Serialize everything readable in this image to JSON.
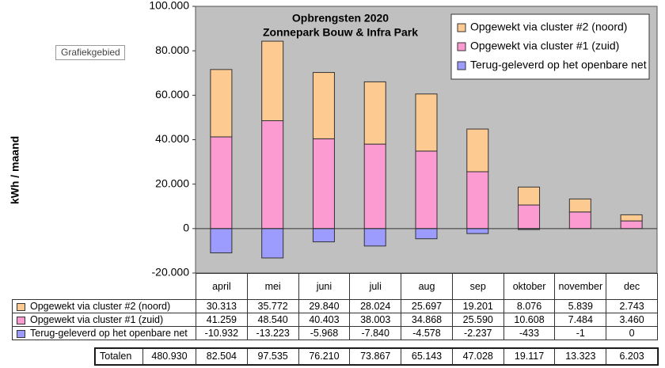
{
  "chart_data": {
    "type": "bar",
    "title": [
      "Opbrengsten 2020",
      "Zonnepark Bouw & Infra Park"
    ],
    "ylabel": "kWh / maand",
    "tooltip": "Grafiekgebied",
    "categories": [
      "april",
      "mei",
      "juni",
      "juli",
      "aug",
      "sep",
      "oktober",
      "november",
      "dec"
    ],
    "stacked": true,
    "series": [
      {
        "name": "Opgewekt via cluster #2 (noord)",
        "color": "#fdca92",
        "values": [
          30313,
          35772,
          29840,
          28024,
          25697,
          19201,
          8076,
          5839,
          2743
        ],
        "value_labels": [
          "30.313",
          "35.772",
          "29.840",
          "28.024",
          "25.697",
          "19.201",
          "8.076",
          "5.839",
          "2.743"
        ]
      },
      {
        "name": "Opgewekt via cluster #1 (zuid)",
        "color": "#fb9bd2",
        "values": [
          41259,
          48540,
          40403,
          38003,
          34868,
          25590,
          10608,
          7484,
          3460
        ],
        "value_labels": [
          "41.259",
          "48.540",
          "40.403",
          "38.003",
          "34.868",
          "25.590",
          "10.608",
          "7.484",
          "3.460"
        ]
      },
      {
        "name": "Terug-geleverd op het openbare net",
        "color": "#9c9cff",
        "values": [
          -10932,
          -13223,
          -5968,
          -7840,
          -4578,
          -2237,
          -433,
          -1,
          0
        ],
        "value_labels": [
          "-10.932",
          "-13.223",
          "-5.968",
          "-7.840",
          "-4.578",
          "-2.237",
          "-433",
          "-1",
          "0"
        ]
      }
    ],
    "stack_order": [
      1,
      0,
      2
    ],
    "ylim": [
      -20000,
      100000
    ],
    "yticks": [
      {
        "value": -20000,
        "label": "-20.000"
      },
      0,
      {
        "value": 20000,
        "label": "20.000"
      },
      {
        "value": 40000,
        "label": "40.000"
      },
      {
        "value": 60000,
        "label": "60.000"
      },
      {
        "value": 80000,
        "label": "80.000"
      },
      {
        "value": 100000,
        "label": "100.000"
      }
    ],
    "totals": {
      "label": "Totalen",
      "grand": "480.930",
      "values": [
        "82.504",
        "97.535",
        "76.210",
        "73.867",
        "65.143",
        "47.028",
        "19.117",
        "13.323",
        "6.203"
      ]
    }
  }
}
